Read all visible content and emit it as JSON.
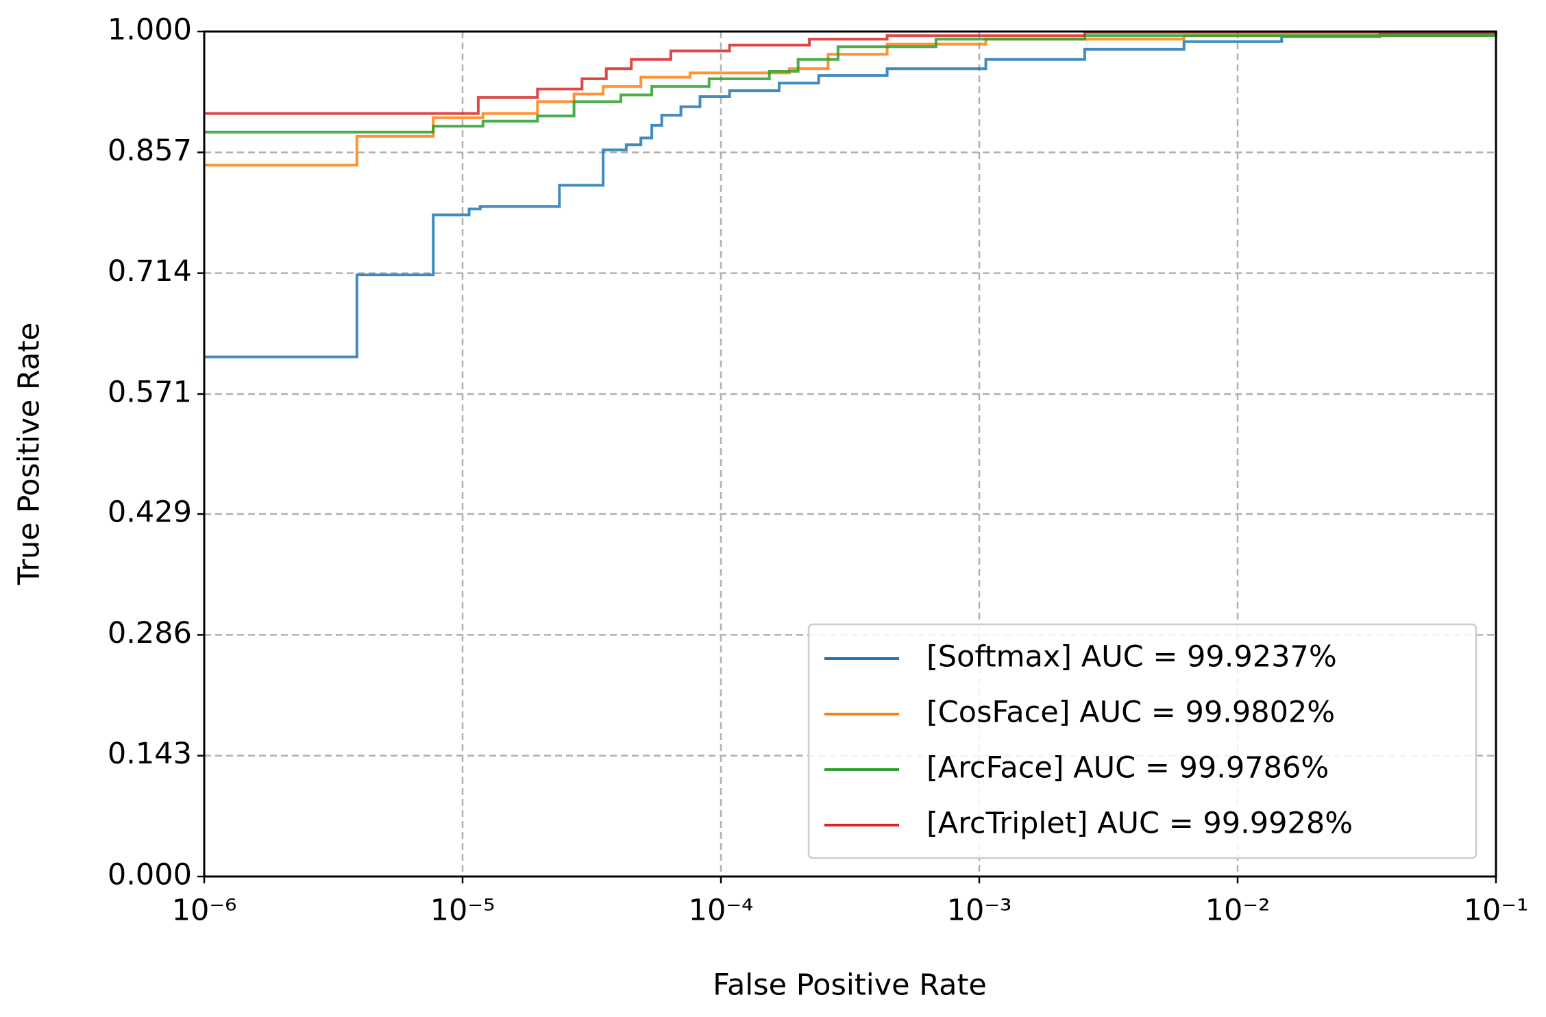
{
  "chart_data": {
    "type": "line",
    "xlabel": "False Positive Rate",
    "ylabel": "True Positive Rate",
    "xscale": "log",
    "xlim": [
      1e-06,
      0.1
    ],
    "xticks": [
      {
        "value": 1e-06,
        "label": "10⁻⁶"
      },
      {
        "value": 1e-05,
        "label": "10⁻⁵"
      },
      {
        "value": 0.0001,
        "label": "10⁻⁴"
      },
      {
        "value": 0.001,
        "label": "10⁻³"
      },
      {
        "value": 0.01,
        "label": "10⁻²"
      },
      {
        "value": 0.1,
        "label": "10⁻¹"
      }
    ],
    "ylim": [
      0,
      1
    ],
    "yticks": [
      {
        "value": 0,
        "label": "0.000"
      },
      0.143,
      0.286,
      0.429,
      0.571,
      0.714,
      0.857,
      {
        "value": 1,
        "label": "1.000"
      }
    ],
    "grid": true,
    "legend": "lower right",
    "drawstyle": "steps-post",
    "series": [
      {
        "name": "[Softmax] AUC = 99.9237%",
        "color": "#1f77b4",
        "x": [
          1e-06,
          3.9e-06,
          7.7e-06,
          1.06e-05,
          1.17e-05,
          2.37e-05,
          3.5e-05,
          4.3e-05,
          4.9e-05,
          5.4e-05,
          5.9e-05,
          7e-05,
          8.3e-05,
          0.000108,
          0.000168,
          0.000239,
          0.00044,
          0.00106,
          0.00256,
          0.0062,
          0.0148,
          0.0355,
          0.1
        ],
        "values": [
          0.615,
          0.712,
          0.783,
          0.79,
          0.793,
          0.818,
          0.86,
          0.866,
          0.874,
          0.889,
          0.901,
          0.911,
          0.923,
          0.93,
          0.939,
          0.948,
          0.956,
          0.967,
          0.979,
          0.988,
          0.994,
          0.998,
          1
        ]
      },
      {
        "name": "[CosFace] AUC = 99.9802%",
        "color": "#ff7f0e",
        "x": [
          1e-06,
          3.9e-06,
          7.7e-06,
          1.2e-05,
          1.95e-05,
          2.7e-05,
          3.5e-05,
          4.9e-05,
          7.6e-05,
          0.000184,
          0.00026,
          0.00044,
          0.00106,
          0.0062,
          0.1
        ],
        "values": [
          0.842,
          0.876,
          0.898,
          0.903,
          0.917,
          0.926,
          0.935,
          0.946,
          0.951,
          0.956,
          0.973,
          0.985,
          0.991,
          0.995,
          1
        ]
      },
      {
        "name": "[ArcFace] AUC = 99.9786%",
        "color": "#2ca02c",
        "x": [
          1e-06,
          7.7e-06,
          1.2e-05,
          1.95e-05,
          2.7e-05,
          4.1e-05,
          5.4e-05,
          9e-05,
          0.000154,
          0.000199,
          0.000284,
          0.00068,
          0.00256,
          0.1
        ],
        "values": [
          0.881,
          0.888,
          0.894,
          0.9,
          0.917,
          0.925,
          0.935,
          0.944,
          0.953,
          0.967,
          0.982,
          0.991,
          0.995,
          1
        ]
      },
      {
        "name": "[ArcTriplet] AUC = 99.9928%",
        "color": "#d62728",
        "x": [
          1e-06,
          1.15e-05,
          1.95e-05,
          2.9e-05,
          3.6e-05,
          4.5e-05,
          6.4e-05,
          0.000108,
          0.00022,
          0.00044,
          0.00256,
          0.1
        ],
        "values": [
          0.903,
          0.922,
          0.932,
          0.944,
          0.956,
          0.967,
          0.977,
          0.984,
          0.991,
          0.995,
          0.999,
          1
        ]
      }
    ]
  }
}
